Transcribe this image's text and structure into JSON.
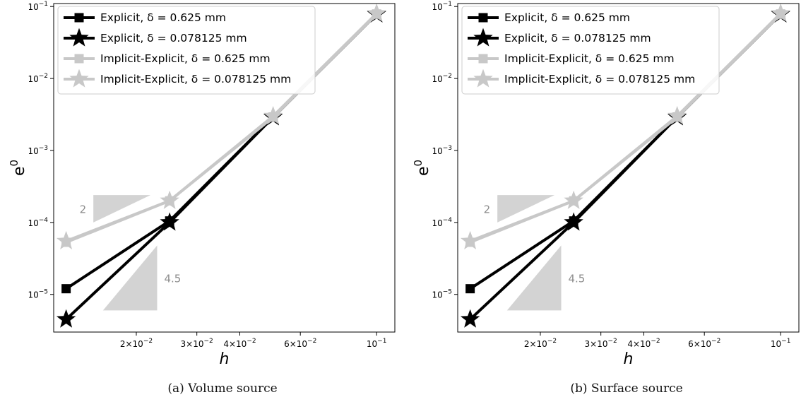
{
  "chart_data": [
    {
      "type": "line",
      "panel_label": "(a)",
      "caption": "Volume source",
      "xlabel": "h",
      "ylabel": "e",
      "ylabel_sup": "0",
      "x_scale": "log",
      "y_scale": "log",
      "xlim": [
        0.0115,
        0.113
      ],
      "ylim": [
        3e-06,
        0.11
      ],
      "grid": false,
      "legend_position": "top-left",
      "x_ticks": [
        {
          "value": 0.02,
          "mant": "2×10",
          "exp": "−2"
        },
        {
          "value": 0.03,
          "mant": "3×10",
          "exp": "−2"
        },
        {
          "value": 0.04,
          "mant": "4×10",
          "exp": "−2"
        },
        {
          "value": 0.06,
          "mant": "6×10",
          "exp": "−2"
        },
        {
          "value": 0.1,
          "mant": "10",
          "exp": "−1"
        }
      ],
      "y_ticks": [
        {
          "value": 1e-05,
          "mant": "10",
          "exp": "−5"
        },
        {
          "value": 0.0001,
          "mant": "10",
          "exp": "−4"
        },
        {
          "value": 0.001,
          "mant": "10",
          "exp": "−3"
        },
        {
          "value": 0.01,
          "mant": "10",
          "exp": "−2"
        },
        {
          "value": 0.1,
          "mant": "10",
          "exp": "−1"
        }
      ],
      "series": [
        {
          "name": "Explicit, δ = 0.625 mm",
          "color": "#000000",
          "marker": "square",
          "x": [
            0.0125,
            0.025,
            0.05,
            0.1
          ],
          "y": [
            1.2e-05,
            0.000105,
            0.0029,
            0.078
          ]
        },
        {
          "name": "Explicit, δ = 0.078125 mm",
          "color": "#000000",
          "marker": "star",
          "x": [
            0.0125,
            0.025,
            0.05,
            0.1
          ],
          "y": [
            4.5e-06,
            0.0001,
            0.0029,
            0.078
          ]
        },
        {
          "name": "Implicit-Explicit, δ = 0.625 mm",
          "color": "#c8c8c8",
          "marker": "square",
          "x": [
            0.0125,
            0.025,
            0.05,
            0.1
          ],
          "y": [
            5.3e-05,
            0.0002,
            0.0029,
            0.078
          ]
        },
        {
          "name": "Implicit-Explicit, δ = 0.078125 mm",
          "color": "#c8c8c8",
          "marker": "star",
          "x": [
            0.0125,
            0.025,
            0.05,
            0.1
          ],
          "y": [
            5.5e-05,
            0.0002,
            0.003,
            0.08
          ]
        }
      ],
      "slope_triangles": [
        {
          "label": "2",
          "x_left": 0.015,
          "x_right": 0.022,
          "y_top": 0.00024,
          "y_bottom": 0.0001,
          "shape": "upper-left",
          "label_side": "left",
          "color": "#d3d3d3"
        },
        {
          "label": "4.5",
          "x_left": 0.016,
          "x_right": 0.023,
          "y_top": 4.8e-05,
          "y_bottom": 6e-06,
          "shape": "lower-right",
          "label_side": "right",
          "color": "#d3d3d3"
        }
      ]
    },
    {
      "type": "line",
      "panel_label": "(b)",
      "caption": "Surface source",
      "xlabel": "h",
      "ylabel": "e",
      "ylabel_sup": "0",
      "x_scale": "log",
      "y_scale": "log",
      "xlim": [
        0.0115,
        0.113
      ],
      "ylim": [
        3e-06,
        0.11
      ],
      "grid": false,
      "legend_position": "top-left",
      "x_ticks": [
        {
          "value": 0.02,
          "mant": "2×10",
          "exp": "−2"
        },
        {
          "value": 0.03,
          "mant": "3×10",
          "exp": "−2"
        },
        {
          "value": 0.04,
          "mant": "4×10",
          "exp": "−2"
        },
        {
          "value": 0.06,
          "mant": "6×10",
          "exp": "−2"
        },
        {
          "value": 0.1,
          "mant": "10",
          "exp": "−1"
        }
      ],
      "y_ticks": [
        {
          "value": 1e-05,
          "mant": "10",
          "exp": "−5"
        },
        {
          "value": 0.0001,
          "mant": "10",
          "exp": "−4"
        },
        {
          "value": 0.001,
          "mant": "10",
          "exp": "−3"
        },
        {
          "value": 0.01,
          "mant": "10",
          "exp": "−2"
        },
        {
          "value": 0.1,
          "mant": "10",
          "exp": "−1"
        }
      ],
      "series": [
        {
          "name": "Explicit, δ = 0.625 mm",
          "color": "#000000",
          "marker": "square",
          "x": [
            0.0125,
            0.025,
            0.05,
            0.1
          ],
          "y": [
            1.2e-05,
            0.000105,
            0.0029,
            0.078
          ]
        },
        {
          "name": "Explicit, δ = 0.078125 mm",
          "color": "#000000",
          "marker": "star",
          "x": [
            0.0125,
            0.025,
            0.05,
            0.1
          ],
          "y": [
            4.5e-06,
            0.0001,
            0.0029,
            0.078
          ]
        },
        {
          "name": "Implicit-Explicit, δ = 0.625 mm",
          "color": "#c8c8c8",
          "marker": "square",
          "x": [
            0.0125,
            0.025,
            0.05,
            0.1
          ],
          "y": [
            5.3e-05,
            0.0002,
            0.0029,
            0.078
          ]
        },
        {
          "name": "Implicit-Explicit, δ = 0.078125 mm",
          "color": "#c8c8c8",
          "marker": "star",
          "x": [
            0.0125,
            0.025,
            0.05,
            0.1
          ],
          "y": [
            5.5e-05,
            0.0002,
            0.003,
            0.08
          ]
        }
      ],
      "slope_triangles": [
        {
          "label": "2",
          "x_left": 0.015,
          "x_right": 0.022,
          "y_top": 0.00024,
          "y_bottom": 0.0001,
          "shape": "upper-left",
          "label_side": "left",
          "color": "#d3d3d3"
        },
        {
          "label": "4.5",
          "x_left": 0.016,
          "x_right": 0.023,
          "y_top": 4.8e-05,
          "y_bottom": 6e-06,
          "shape": "lower-right",
          "label_side": "right",
          "color": "#d3d3d3"
        }
      ]
    }
  ]
}
